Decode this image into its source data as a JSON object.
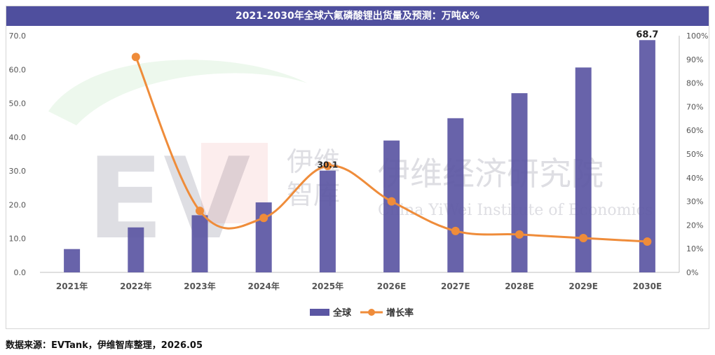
{
  "source_note": "数据来源：EVTank，伊维智库整理，2026.05",
  "watermark": {
    "brand_cn_short": [
      "伊维",
      "智库"
    ],
    "brand_cn_full": "伊维经济研究院",
    "brand_en": "China YiWei Institute of Economics"
  },
  "colors": {
    "bar": "#5b56a3",
    "line": "#ef8c3a",
    "title_bg": "#4f4f9e",
    "axis_text": "#555555"
  },
  "chart_data": {
    "type": "bar",
    "title": "2021-2030年全球六氟磷酸锂出货量及预测：万吨&%",
    "categories": [
      "2021年",
      "2022年",
      "2023年",
      "2024年",
      "2025年",
      "2026E",
      "2027E",
      "2028E",
      "2029E",
      "2030E"
    ],
    "series": [
      {
        "name": "全球",
        "type": "bar",
        "axis": "left",
        "values": [
          6.9,
          13.3,
          16.9,
          20.7,
          30.1,
          39.0,
          45.6,
          53.0,
          60.6,
          68.7
        ]
      },
      {
        "name": "增长率",
        "type": "line",
        "axis": "right",
        "values": [
          null,
          0.91,
          0.26,
          0.23,
          0.45,
          0.3,
          0.175,
          0.16,
          0.145,
          0.13
        ]
      }
    ],
    "data_labels": [
      {
        "category": "2025年",
        "text": "30.1"
      },
      {
        "category": "2030E",
        "text": "68.7"
      }
    ],
    "y_left": {
      "min": 0,
      "max": 70,
      "ticks": [
        "0.0",
        "10.0",
        "20.0",
        "30.0",
        "40.0",
        "50.0",
        "60.0",
        "70.0"
      ]
    },
    "y_right": {
      "min": 0,
      "max": 1.0,
      "ticks": [
        "0%",
        "10%",
        "20%",
        "30%",
        "40%",
        "50%",
        "60%",
        "70%",
        "80%",
        "90%",
        "100%"
      ]
    },
    "legend_position": "bottom",
    "grid": false
  }
}
